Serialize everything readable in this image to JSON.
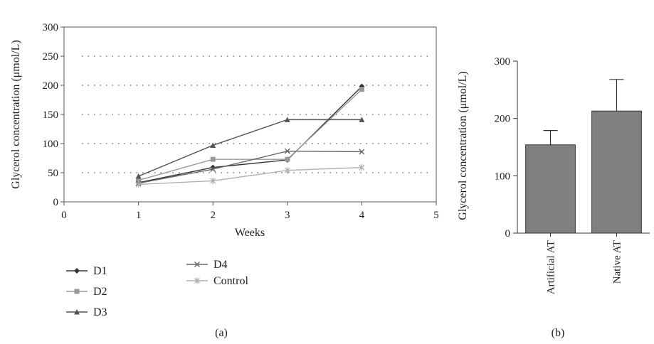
{
  "chart_data": [
    {
      "type": "line",
      "panel_label": "(a)",
      "xlabel": "Weeks",
      "ylabel": "Glycerol concentration (μmol/L)",
      "xlim": [
        0,
        5
      ],
      "ylim": [
        0,
        300
      ],
      "x_ticks": [
        "0",
        "1",
        "2",
        "3",
        "4",
        "5"
      ],
      "y_ticks": [
        "0",
        "50",
        "100",
        "150",
        "200",
        "250",
        "300"
      ],
      "grid": "horizontal dotted",
      "legend_position": "bottom-left",
      "x": [
        1,
        2,
        3,
        4
      ],
      "series": [
        {
          "name": "D1",
          "marker": "diamond",
          "color": "#333333",
          "values": [
            33,
            59,
            72,
            198
          ]
        },
        {
          "name": "D2",
          "marker": "square",
          "color": "#999999",
          "values": [
            37,
            73,
            73,
            193
          ]
        },
        {
          "name": "D3",
          "marker": "triangle",
          "color": "#555555",
          "values": [
            44,
            97,
            141,
            141
          ]
        },
        {
          "name": "D4",
          "marker": "x",
          "color": "#666666",
          "values": [
            32,
            56,
            87,
            86
          ]
        },
        {
          "name": "Control",
          "marker": "asterisk",
          "color": "#b0b0b0",
          "values": [
            30,
            36,
            54,
            59
          ]
        }
      ]
    },
    {
      "type": "bar",
      "panel_label": "(b)",
      "ylabel": "Glycerol concentration (μmol/L)",
      "ylim": [
        0,
        300
      ],
      "y_ticks": [
        "0",
        "100",
        "200",
        "300"
      ],
      "categories": [
        "Artificial AT",
        "Native AT"
      ],
      "values": [
        154,
        213
      ],
      "error_upper": [
        179,
        268
      ],
      "bar_color": "#808080"
    }
  ]
}
